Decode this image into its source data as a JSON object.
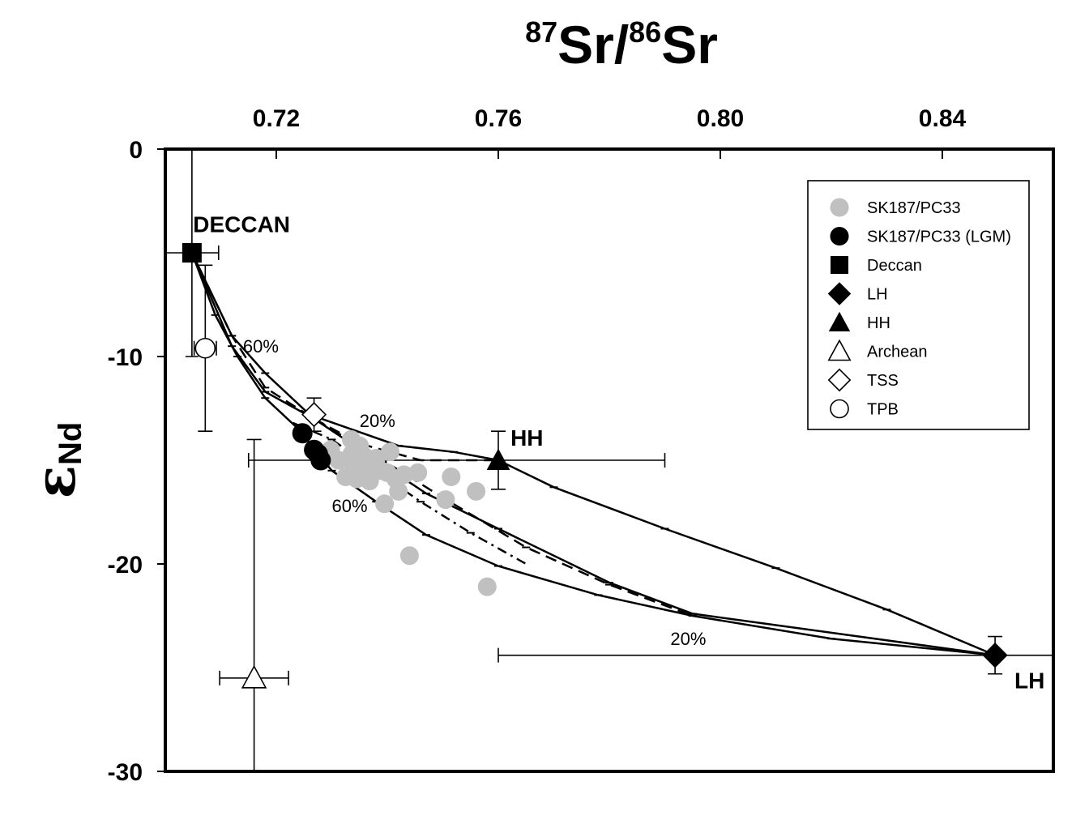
{
  "chart_data": {
    "type": "scatter",
    "title": {
      "sup1": "87",
      "part1": "Sr/",
      "sup2": "86",
      "part2": "Sr"
    },
    "ylabel": {
      "main": "ε",
      "sub": "Nd"
    },
    "xlim": [
      0.7,
      0.86
    ],
    "ylim": [
      -30,
      0
    ],
    "x_axis_position": "top",
    "x_ticks": [
      0.72,
      0.76,
      0.8,
      0.84
    ],
    "x_tick_labels": [
      "0.72",
      "0.76",
      "0.80",
      "0.84"
    ],
    "y_ticks": [
      0,
      -10,
      -20,
      -30
    ],
    "y_tick_labels": [
      "0",
      "-10",
      "-20",
      "-30"
    ],
    "grid": false,
    "legend_position": "top-right",
    "legend": [
      {
        "label": "SK187/PC33",
        "marker": "circle-gray"
      },
      {
        "label": "SK187/PC33 (LGM)",
        "marker": "circle-black"
      },
      {
        "label": "Deccan",
        "marker": "square-black"
      },
      {
        "label": "LH",
        "marker": "diamond-black"
      },
      {
        "label": "HH",
        "marker": "triangle-black"
      },
      {
        "label": "Archean",
        "marker": "triangle-open"
      },
      {
        "label": "TSS",
        "marker": "diamond-open"
      },
      {
        "label": "TPB",
        "marker": "circle-open"
      }
    ],
    "series": [
      {
        "name": "SK187/PC33",
        "marker": "circle-gray",
        "points": [
          [
            0.7298,
            -14.5
          ],
          [
            0.7312,
            -15.0
          ],
          [
            0.7325,
            -15.8
          ],
          [
            0.7335,
            -14.0
          ],
          [
            0.7336,
            -14.7
          ],
          [
            0.734,
            -15.3
          ],
          [
            0.7345,
            -15.9
          ],
          [
            0.735,
            -14.3
          ],
          [
            0.7352,
            -15.2
          ],
          [
            0.7358,
            -14.8
          ],
          [
            0.7362,
            -15.5
          ],
          [
            0.7368,
            -16.0
          ],
          [
            0.7375,
            -15.1
          ],
          [
            0.738,
            -14.9
          ],
          [
            0.7388,
            -15.5
          ],
          [
            0.7395,
            -17.1
          ],
          [
            0.74,
            -15.6
          ],
          [
            0.7405,
            -14.6
          ],
          [
            0.7415,
            -15.9
          ],
          [
            0.742,
            -16.5
          ],
          [
            0.743,
            -15.7
          ],
          [
            0.744,
            -19.6
          ],
          [
            0.7455,
            -15.6
          ],
          [
            0.7505,
            -16.9
          ],
          [
            0.7515,
            -15.8
          ],
          [
            0.756,
            -16.5
          ],
          [
            0.758,
            -21.1
          ]
        ]
      },
      {
        "name": "SK187/PC33 (LGM)",
        "marker": "circle-black",
        "points": [
          [
            0.7247,
            -13.7
          ],
          [
            0.7268,
            -14.5
          ],
          [
            0.7275,
            -14.7
          ],
          [
            0.728,
            -15.0
          ]
        ]
      },
      {
        "name": "Deccan",
        "marker": "square-black",
        "points": [
          [
            0.7048,
            -5.0
          ]
        ],
        "xerr": [
          0.0048
        ],
        "yerr": [
          0
        ]
      },
      {
        "name": "LH",
        "marker": "diamond-black",
        "points": [
          [
            0.8495,
            -24.4
          ]
        ],
        "xerr_minus": [
          0.0895
        ],
        "xerr_plus": [
          0.0105
        ],
        "yerr": [
          0.9
        ]
      },
      {
        "name": "HH",
        "marker": "triangle-black",
        "points": [
          [
            0.76,
            -15.0
          ]
        ],
        "xerr_minus": [
          0.045
        ],
        "xerr_plus": [
          0.03
        ],
        "yerr": [
          1.4
        ]
      },
      {
        "name": "Archean",
        "marker": "triangle-open",
        "points": [
          [
            0.716,
            -25.5
          ]
        ],
        "xerr": [
          0.0062
        ],
        "yerr_plus": [
          11.5
        ],
        "yerr_minus": [
          4.5
        ]
      },
      {
        "name": "TSS",
        "marker": "diamond-open",
        "points": [
          [
            0.7268,
            -12.8
          ]
        ],
        "xerr": [
          0
        ],
        "yerr": [
          0.8
        ]
      },
      {
        "name": "TPB",
        "marker": "circle-open",
        "points": [
          [
            0.7072,
            -9.6
          ]
        ],
        "xerr": [
          0.002
        ],
        "yerr": [
          4.0
        ]
      }
    ],
    "mixing_curves": [
      {
        "style": "solid",
        "points": [
          [
            0.7048,
            -5.0
          ],
          [
            0.712,
            -9.0
          ],
          [
            0.718,
            -10.8
          ],
          [
            0.726,
            -12.8
          ],
          [
            0.742,
            -14.3
          ],
          [
            0.752,
            -14.6
          ],
          [
            0.76,
            -15.0
          ],
          [
            0.77,
            -16.3
          ],
          [
            0.79,
            -18.3
          ],
          [
            0.81,
            -20.2
          ],
          [
            0.83,
            -22.2
          ],
          [
            0.8495,
            -24.4
          ]
        ]
      },
      {
        "style": "solid",
        "points": [
          [
            0.7048,
            -5.0
          ],
          [
            0.709,
            -8.0
          ],
          [
            0.713,
            -10.0
          ],
          [
            0.718,
            -12.0
          ],
          [
            0.724,
            -13.5
          ],
          [
            0.73,
            -15.5
          ],
          [
            0.738,
            -17.0
          ],
          [
            0.747,
            -18.6
          ],
          [
            0.76,
            -20.1
          ],
          [
            0.778,
            -21.5
          ],
          [
            0.795,
            -22.5
          ],
          [
            0.82,
            -23.6
          ],
          [
            0.8495,
            -24.4
          ]
        ]
      },
      {
        "style": "solid",
        "points": [
          [
            0.7048,
            -5.0
          ],
          [
            0.712,
            -9.5
          ],
          [
            0.718,
            -11.7
          ],
          [
            0.7268,
            -13.0
          ],
          [
            0.738,
            -15.0
          ],
          [
            0.747,
            -16.6
          ],
          [
            0.76,
            -18.3
          ],
          [
            0.78,
            -20.9
          ],
          [
            0.795,
            -22.4
          ],
          [
            0.8495,
            -24.4
          ]
        ]
      },
      {
        "style": "dashed",
        "points": [
          [
            0.7048,
            -5.0
          ],
          [
            0.712,
            -9.0
          ],
          [
            0.718,
            -11.5
          ],
          [
            0.7268,
            -13.0
          ],
          [
            0.738,
            -14.8
          ],
          [
            0.75,
            -16.8
          ],
          [
            0.765,
            -19.2
          ],
          [
            0.78,
            -21.0
          ],
          [
            0.795,
            -22.5
          ]
        ]
      },
      {
        "style": "dashed",
        "points": [
          [
            0.7268,
            -13.0
          ],
          [
            0.735,
            -14.2
          ],
          [
            0.746,
            -15.0
          ],
          [
            0.76,
            -15.0
          ]
        ]
      },
      {
        "style": "dashdot",
        "points": [
          [
            0.723,
            -13.2
          ],
          [
            0.73,
            -14.0
          ],
          [
            0.738,
            -15.5
          ],
          [
            0.746,
            -17.0
          ],
          [
            0.755,
            -18.5
          ],
          [
            0.765,
            -20.0
          ]
        ]
      }
    ],
    "annotations": [
      {
        "text": "DECCAN",
        "x": 0.705,
        "y": -4.0,
        "style": "bold"
      },
      {
        "text": "HH",
        "x": 0.7622,
        "y": -14.3,
        "style": "bold"
      },
      {
        "text": "LH",
        "x": 0.853,
        "y": -26.0,
        "style": "bold"
      },
      {
        "text": "60%",
        "x": 0.714,
        "y": -9.8,
        "style": "normal"
      },
      {
        "text": "20%",
        "x": 0.735,
        "y": -13.4,
        "style": "normal"
      },
      {
        "text": "60%",
        "x": 0.73,
        "y": -17.5,
        "style": "normal"
      },
      {
        "text": "20%",
        "x": 0.791,
        "y": -23.9,
        "style": "normal"
      }
    ]
  }
}
